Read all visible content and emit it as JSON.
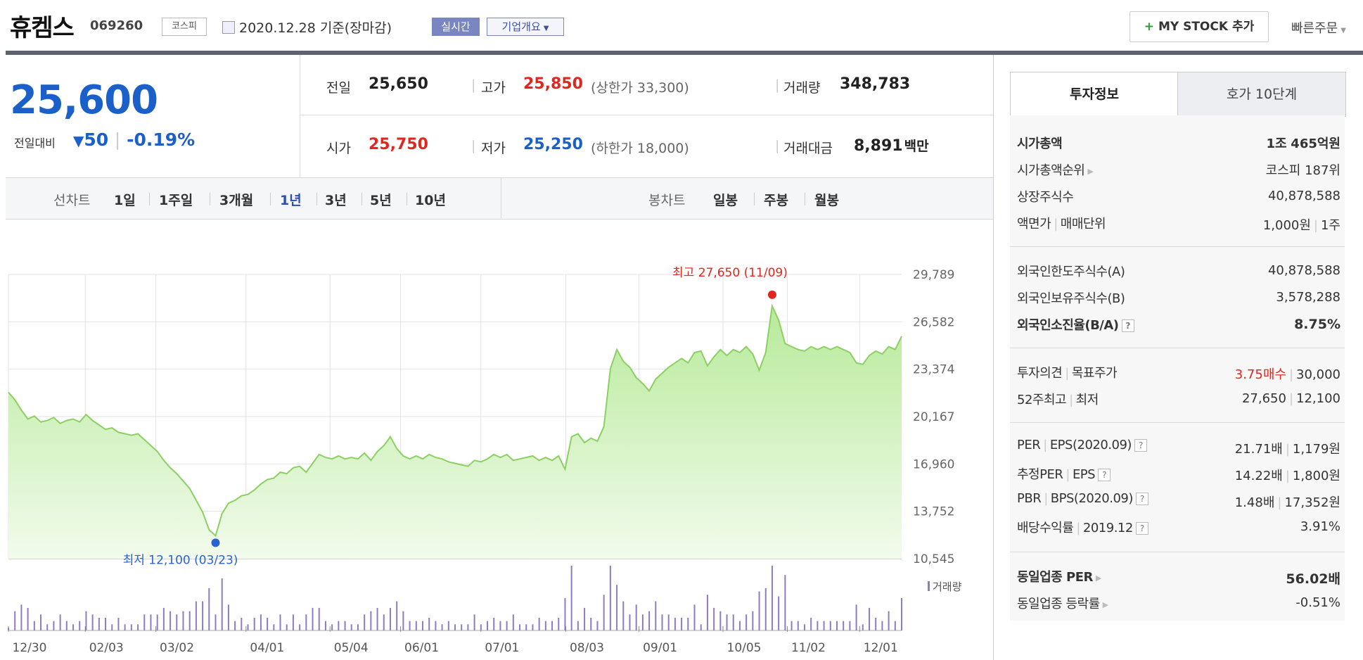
{
  "header": {
    "stock_name": "휴켐스",
    "stock_code": "069260",
    "market": "코스피",
    "date": "2020.12.28 기준(장마감)",
    "realtime_label": "실시간",
    "corp_overview_label": "기업개요",
    "mystock_label": "MY STOCK 추가",
    "quick_order_label": "빠른주문"
  },
  "price": {
    "current": "25,600",
    "change_label": "전일대비",
    "change_value": "50",
    "change_pct": "-0.19%"
  },
  "quote": {
    "prev_close_label": "전일",
    "prev_close": "25,650",
    "high_label": "고가",
    "high": "25,850",
    "upper_limit": "(상한가 33,300)",
    "volume_label": "거래량",
    "volume": "348,783",
    "open_label": "시가",
    "open": "25,750",
    "low_label": "저가",
    "low": "25,250",
    "lower_limit": "(하한가 18,000)",
    "amount_label": "거래대금",
    "amount": "8,891",
    "amount_unit": "백만"
  },
  "line_chart_tabs": {
    "label": "선차트",
    "items": [
      "1일",
      "1주일",
      "3개월",
      "1년",
      "3년",
      "5년",
      "10년"
    ],
    "active": "1년"
  },
  "candle_chart_tabs": {
    "label": "봉차트",
    "items": [
      "일봉",
      "주봉",
      "월봉"
    ]
  },
  "chart_data": {
    "type": "area",
    "y_ticks": [
      "29,789",
      "26,582",
      "23,374",
      "20,167",
      "16,960",
      "13,752",
      "10,545"
    ],
    "ylim": [
      10545,
      29789
    ],
    "x_ticks": [
      "12/30",
      "02/03",
      "03/02",
      "04/01",
      "05/04",
      "06/01",
      "07/01",
      "08/03",
      "09/01",
      "10/05",
      "11/02",
      "12/01"
    ],
    "high_label": "최고 27,650 (11/09)",
    "low_label": "최저 12,100 (03/23)",
    "volume_label": "거래량",
    "series": [
      {
        "values": [
          21800,
          21300,
          20600,
          20000,
          20200,
          19800,
          19900,
          20100,
          19700,
          19900,
          20000,
          19800,
          20300,
          19900,
          19600,
          19300,
          19400,
          19100,
          19000,
          18900,
          19000,
          18600,
          18200,
          17800,
          17200,
          16700,
          16300,
          15800,
          15300,
          14500,
          13700,
          12500,
          12100,
          13600,
          14300,
          14500,
          14800,
          14900,
          15200,
          15600,
          15900,
          16000,
          16400,
          16300,
          16700,
          16800,
          16400,
          17000,
          17600,
          17400,
          17300,
          17500,
          17300,
          17400,
          17300,
          17700,
          17200,
          17800,
          18200,
          18800,
          18000,
          17500,
          17300,
          17500,
          17300,
          17600,
          17400,
          17300,
          17100,
          17000,
          16900,
          16800,
          17200,
          17100,
          17300,
          17600,
          17400,
          17600,
          17200,
          17300,
          17400,
          17500,
          17200,
          17400,
          17200,
          17500,
          16600,
          18800,
          19000,
          18400,
          18700,
          18500,
          19500,
          23400,
          24700,
          23900,
          23500,
          22800,
          22400,
          21900,
          22700,
          23100,
          23500,
          23800,
          24100,
          23800,
          24500,
          24600,
          23600,
          24200,
          24700,
          24300,
          24700,
          24500,
          24900,
          24400,
          23300,
          24500,
          27650,
          26700,
          25100,
          24900,
          24700,
          24600,
          24900,
          24700,
          24900,
          24700,
          24900,
          24700,
          24500,
          23800,
          23700,
          24300,
          24600,
          24400,
          24900,
          24700,
          25600
        ]
      }
    ]
  },
  "invest_tabs": {
    "tab1": "투자정보",
    "tab2": "호가 10단계"
  },
  "invest": {
    "market_cap_label": "시가총액",
    "market_cap_a": "1조",
    "market_cap_b": "465",
    "market_cap_unit": "억원",
    "rank_label": "시가총액순위",
    "rank": "코스피 187위",
    "shares_label": "상장주식수",
    "shares": "40,878,588",
    "facevalue_label": "액면가",
    "trade_unit_label": "매매단위",
    "facevalue": "1,000원",
    "trade_unit": "1주",
    "foreign_limit_label": "외국인한도주식수(A)",
    "foreign_limit": "40,878,588",
    "foreign_hold_label": "외국인보유주식수(B)",
    "foreign_hold": "3,578,288",
    "foreign_ratio_label": "외국인소진율(B/A)",
    "foreign_ratio": "8.75%",
    "opinion_label": "투자의견",
    "target_label": "목표주가",
    "opinion": "3.75매수",
    "target": "30,000",
    "w52_label": "52주최고",
    "w52_low_label": "최저",
    "w52_high": "27,650",
    "w52_low": "12,100",
    "per_label": "PER",
    "eps_label": "EPS(2020.09)",
    "per": "21.71배",
    "eps": "1,179원",
    "eper_label": "추정PER",
    "eeps_label": "EPS",
    "eper": "14.22배",
    "eeps": "1,800원",
    "pbr_label": "PBR",
    "bps_label": "BPS(2020.09)",
    "pbr": "1.48배",
    "bps": "17,352원",
    "div_label": "배당수익률",
    "div_year": "2019.12",
    "div": "3.91%",
    "sector_per_label": "동일업종 PER",
    "sector_per": "56.02배",
    "sector_rate_label": "동일업종 등락률",
    "sector_rate": "-0.51%"
  }
}
